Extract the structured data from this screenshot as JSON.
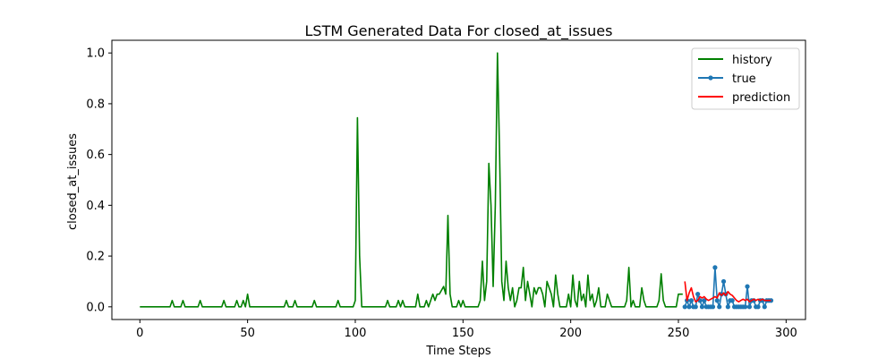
{
  "chart_data": {
    "type": "line",
    "title": "LSTM Generated Data For closed_at_issues",
    "xlabel": "Time Steps",
    "ylabel": "closed_at_issues",
    "xlim": [
      -13,
      309
    ],
    "ylim": [
      -0.05,
      1.05
    ],
    "xticks": [
      0,
      50,
      100,
      150,
      200,
      250,
      300
    ],
    "yticks": [
      0.0,
      0.2,
      0.4,
      0.6,
      0.8,
      1.0
    ],
    "xtick_labels": [
      "0",
      "50",
      "100",
      "150",
      "200",
      "250",
      "300"
    ],
    "ytick_labels": [
      "0.0",
      "0.2",
      "0.4",
      "0.6",
      "0.8",
      "1.0"
    ],
    "grid": false,
    "legend_position": "top-right",
    "legend": {
      "history": "history",
      "true": "true",
      "prediction": "prediction"
    },
    "series": [
      {
        "name": "history",
        "color": "#008000",
        "marker": false,
        "points": [
          [
            0,
            0
          ],
          [
            14,
            0
          ],
          [
            15,
            0.025
          ],
          [
            16,
            0
          ],
          [
            19,
            0
          ],
          [
            20,
            0.025
          ],
          [
            21,
            0
          ],
          [
            27,
            0
          ],
          [
            28,
            0.025
          ],
          [
            29,
            0
          ],
          [
            38,
            0
          ],
          [
            39,
            0.025
          ],
          [
            40,
            0
          ],
          [
            44,
            0
          ],
          [
            45,
            0.025
          ],
          [
            46,
            0
          ],
          [
            47,
            0
          ],
          [
            48,
            0.025
          ],
          [
            49,
            0
          ],
          [
            50,
            0.05
          ],
          [
            51,
            0
          ],
          [
            67,
            0
          ],
          [
            68,
            0.025
          ],
          [
            69,
            0
          ],
          [
            71,
            0
          ],
          [
            72,
            0.025
          ],
          [
            73,
            0
          ],
          [
            80,
            0
          ],
          [
            81,
            0.025
          ],
          [
            82,
            0
          ],
          [
            91,
            0
          ],
          [
            92,
            0.025
          ],
          [
            93,
            0
          ],
          [
            99,
            0
          ],
          [
            100,
            0.025
          ],
          [
            101,
            0.745
          ],
          [
            102,
            0.2
          ],
          [
            103,
            0
          ],
          [
            114,
            0
          ],
          [
            115,
            0.025
          ],
          [
            116,
            0
          ],
          [
            119,
            0
          ],
          [
            120,
            0.025
          ],
          [
            121,
            0
          ],
          [
            122,
            0.025
          ],
          [
            123,
            0
          ],
          [
            128,
            0
          ],
          [
            129,
            0.05
          ],
          [
            130,
            0
          ],
          [
            132,
            0
          ],
          [
            133,
            0.025
          ],
          [
            134,
            0
          ],
          [
            136,
            0.05
          ],
          [
            137,
            0.025
          ],
          [
            138,
            0.05
          ],
          [
            139,
            0.05
          ],
          [
            140,
            0.065
          ],
          [
            141,
            0.08
          ],
          [
            142,
            0.05
          ],
          [
            143,
            0.36
          ],
          [
            144,
            0.05
          ],
          [
            145,
            0
          ],
          [
            147,
            0
          ],
          [
            148,
            0.025
          ],
          [
            149,
            0
          ],
          [
            150,
            0.025
          ],
          [
            151,
            0
          ],
          [
            157,
            0
          ],
          [
            158,
            0.025
          ],
          [
            159,
            0.18
          ],
          [
            160,
            0.025
          ],
          [
            161,
            0.1
          ],
          [
            162,
            0.565
          ],
          [
            163,
            0.4
          ],
          [
            164,
            0.08
          ],
          [
            165,
            0.4
          ],
          [
            166,
            1.0
          ],
          [
            167,
            0.6
          ],
          [
            168,
            0.1
          ],
          [
            169,
            0.025
          ],
          [
            170,
            0.18
          ],
          [
            171,
            0.075
          ],
          [
            172,
            0.025
          ],
          [
            173,
            0.075
          ],
          [
            174,
            0
          ],
          [
            175,
            0.025
          ],
          [
            176,
            0.075
          ],
          [
            177,
            0.075
          ],
          [
            178,
            0.155
          ],
          [
            179,
            0.025
          ],
          [
            180,
            0.1
          ],
          [
            181,
            0.05
          ],
          [
            182,
            0
          ],
          [
            183,
            0.075
          ],
          [
            184,
            0.05
          ],
          [
            185,
            0.075
          ],
          [
            186,
            0.075
          ],
          [
            187,
            0.05
          ],
          [
            188,
            0
          ],
          [
            189,
            0.1
          ],
          [
            190,
            0.075
          ],
          [
            191,
            0.05
          ],
          [
            192,
            0
          ],
          [
            193,
            0.125
          ],
          [
            194,
            0.05
          ],
          [
            195,
            0
          ],
          [
            198,
            0
          ],
          [
            199,
            0.05
          ],
          [
            200,
            0
          ],
          [
            201,
            0.125
          ],
          [
            202,
            0.025
          ],
          [
            203,
            0
          ],
          [
            204,
            0.1
          ],
          [
            205,
            0.025
          ],
          [
            206,
            0.05
          ],
          [
            207,
            0
          ],
          [
            208,
            0.125
          ],
          [
            209,
            0.025
          ],
          [
            210,
            0.05
          ],
          [
            211,
            0
          ],
          [
            212,
            0.025
          ],
          [
            213,
            0.075
          ],
          [
            214,
            0
          ],
          [
            216,
            0
          ],
          [
            217,
            0.05
          ],
          [
            218,
            0.025
          ],
          [
            219,
            0
          ],
          [
            225,
            0
          ],
          [
            226,
            0.025
          ],
          [
            227,
            0.155
          ],
          [
            228,
            0
          ],
          [
            229,
            0.025
          ],
          [
            230,
            0
          ],
          [
            232,
            0
          ],
          [
            233,
            0.075
          ],
          [
            234,
            0.025
          ],
          [
            235,
            0
          ],
          [
            240,
            0
          ],
          [
            241,
            0.025
          ],
          [
            242,
            0.13
          ],
          [
            243,
            0.025
          ],
          [
            244,
            0
          ],
          [
            249,
            0
          ],
          [
            250,
            0.05
          ],
          [
            251,
            0.05
          ],
          [
            252,
            0.05
          ]
        ]
      },
      {
        "name": "true",
        "color": "#1f77b4",
        "marker": true,
        "points": [
          [
            253,
            0
          ],
          [
            254,
            0.025
          ],
          [
            255,
            0
          ],
          [
            256,
            0.025
          ],
          [
            257,
            0
          ],
          [
            258,
            0
          ],
          [
            259,
            0.05
          ],
          [
            260,
            0.025
          ],
          [
            261,
            0
          ],
          [
            262,
            0.025
          ],
          [
            263,
            0
          ],
          [
            264,
            0
          ],
          [
            265,
            0
          ],
          [
            266,
            0
          ],
          [
            267,
            0.155
          ],
          [
            268,
            0.025
          ],
          [
            269,
            0
          ],
          [
            270,
            0.05
          ],
          [
            271,
            0.1
          ],
          [
            272,
            0.05
          ],
          [
            273,
            0
          ],
          [
            274,
            0.025
          ],
          [
            275,
            0.025
          ],
          [
            276,
            0
          ],
          [
            277,
            0
          ],
          [
            278,
            0
          ],
          [
            279,
            0
          ],
          [
            280,
            0
          ],
          [
            281,
            0
          ],
          [
            282,
            0.08
          ],
          [
            283,
            0
          ],
          [
            284,
            0.025
          ],
          [
            285,
            0.025
          ],
          [
            286,
            0
          ],
          [
            287,
            0
          ],
          [
            288,
            0.025
          ],
          [
            289,
            0.025
          ],
          [
            290,
            0
          ],
          [
            291,
            0.025
          ],
          [
            292,
            0.025
          ],
          [
            293,
            0.025
          ]
        ]
      },
      {
        "name": "prediction",
        "color": "#ff0000",
        "marker": false,
        "points": [
          [
            253,
            0.1
          ],
          [
            254,
            0.025
          ],
          [
            255,
            0.055
          ],
          [
            256,
            0.075
          ],
          [
            257,
            0.04
          ],
          [
            258,
            0.02
          ],
          [
            259,
            0.025
          ],
          [
            260,
            0.04
          ],
          [
            261,
            0.035
          ],
          [
            262,
            0.04
          ],
          [
            263,
            0.03
          ],
          [
            264,
            0.025
          ],
          [
            265,
            0.03
          ],
          [
            266,
            0.035
          ],
          [
            267,
            0.04
          ],
          [
            268,
            0.035
          ],
          [
            269,
            0.055
          ],
          [
            270,
            0.045
          ],
          [
            271,
            0.055
          ],
          [
            272,
            0.045
          ],
          [
            273,
            0.06
          ],
          [
            274,
            0.05
          ],
          [
            275,
            0.045
          ],
          [
            276,
            0.035
          ],
          [
            277,
            0.025
          ],
          [
            278,
            0.02
          ],
          [
            279,
            0.025
          ],
          [
            280,
            0.03
          ],
          [
            281,
            0.025
          ],
          [
            282,
            0.03
          ],
          [
            283,
            0.02
          ],
          [
            284,
            0.025
          ],
          [
            285,
            0.03
          ],
          [
            286,
            0.025
          ],
          [
            287,
            0.03
          ],
          [
            288,
            0.025
          ],
          [
            289,
            0.03
          ],
          [
            290,
            0.025
          ],
          [
            291,
            0.025
          ],
          [
            292,
            0.025
          ],
          [
            293,
            0.025
          ]
        ]
      }
    ]
  }
}
